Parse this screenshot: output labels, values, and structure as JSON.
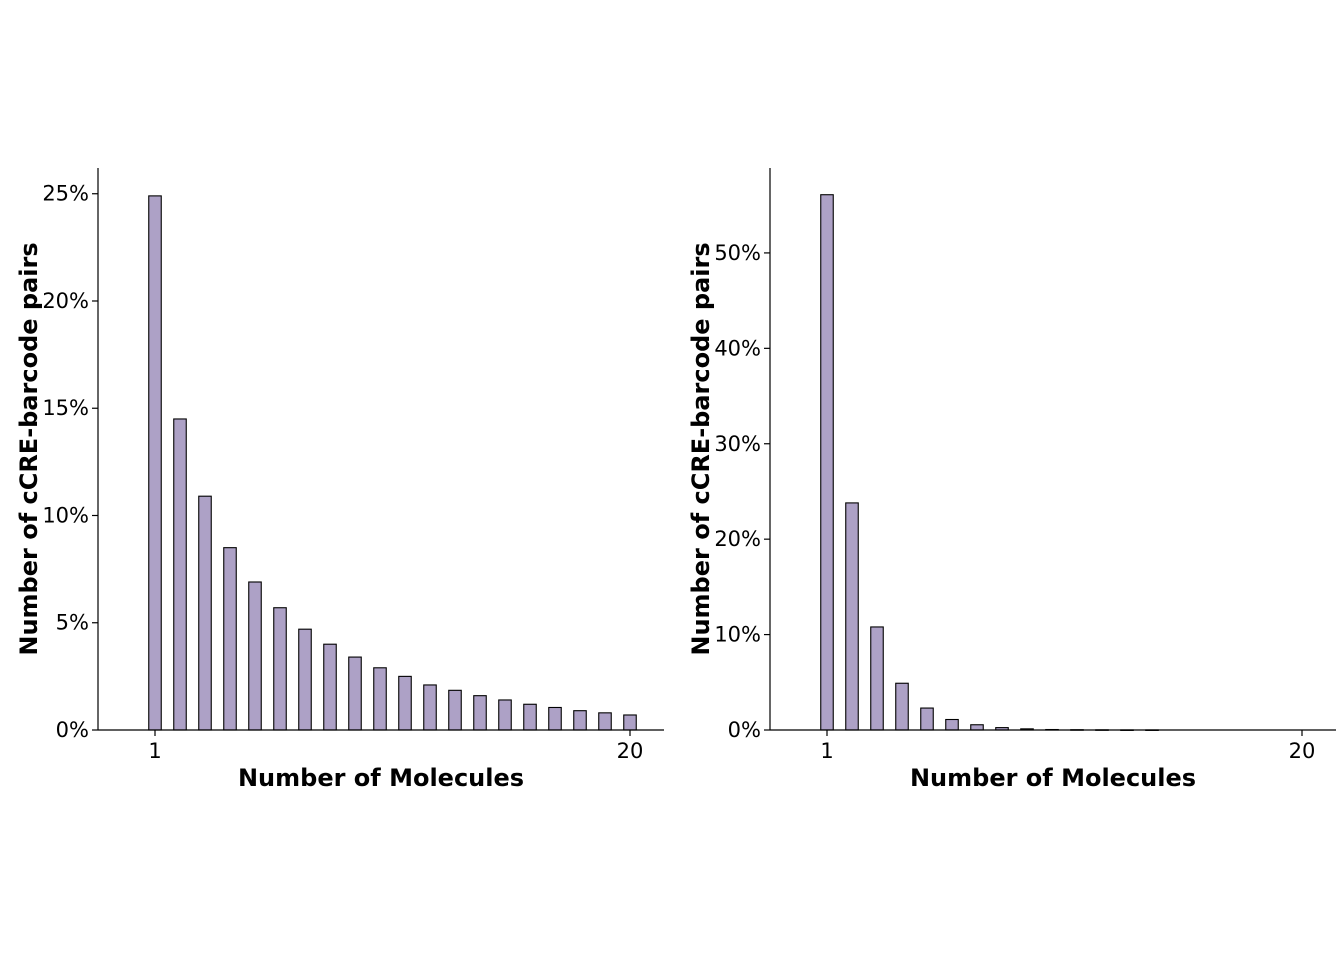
{
  "chart_data": [
    {
      "type": "bar",
      "x": [
        1,
        2,
        3,
        4,
        5,
        6,
        7,
        8,
        9,
        10,
        11,
        12,
        13,
        14,
        15,
        16,
        17,
        18,
        19,
        20
      ],
      "values": [
        24.9,
        14.5,
        10.9,
        8.5,
        6.9,
        5.7,
        4.7,
        4.0,
        3.4,
        2.9,
        2.5,
        2.1,
        1.85,
        1.6,
        1.4,
        1.2,
        1.05,
        0.9,
        0.8,
        0.7
      ],
      "xlabel": "Number of Molecules",
      "ylabel": "Number of cCRE-barcode pairs",
      "ylim": [
        0,
        26.2
      ],
      "xticks": [
        1,
        20
      ],
      "xtick_labels": [
        "1",
        "20"
      ],
      "yticks": [
        0,
        5,
        10,
        15,
        20,
        25
      ],
      "ytick_labels": [
        "0%",
        "5%",
        "10%",
        "15%",
        "20%",
        "25%"
      ],
      "bar_color": "#ada1c6",
      "edge_color": "#000000",
      "grid": false
    },
    {
      "type": "bar",
      "x": [
        1,
        2,
        3,
        4,
        5,
        6,
        7,
        8,
        9,
        10,
        11,
        12,
        13,
        14,
        15,
        16,
        17,
        18,
        19,
        20
      ],
      "values": [
        56.1,
        23.8,
        10.8,
        4.9,
        2.3,
        1.1,
        0.55,
        0.25,
        0.12,
        0.05,
        0.03,
        0.02,
        0.01,
        0.01,
        0.0,
        0.0,
        0.0,
        0.0,
        0.0,
        0.0
      ],
      "xlabel": "Number of Molecules",
      "ylabel": "Number of cCRE-barcode pairs",
      "ylim": [
        0,
        58.9
      ],
      "xticks": [
        1,
        20
      ],
      "xtick_labels": [
        "1",
        "20"
      ],
      "yticks": [
        0,
        10,
        20,
        30,
        40,
        50
      ],
      "ytick_labels": [
        "0%",
        "10%",
        "20%",
        "30%",
        "40%",
        "50%"
      ],
      "bar_color": "#ada1c6",
      "edge_color": "#000000",
      "grid": false
    }
  ]
}
